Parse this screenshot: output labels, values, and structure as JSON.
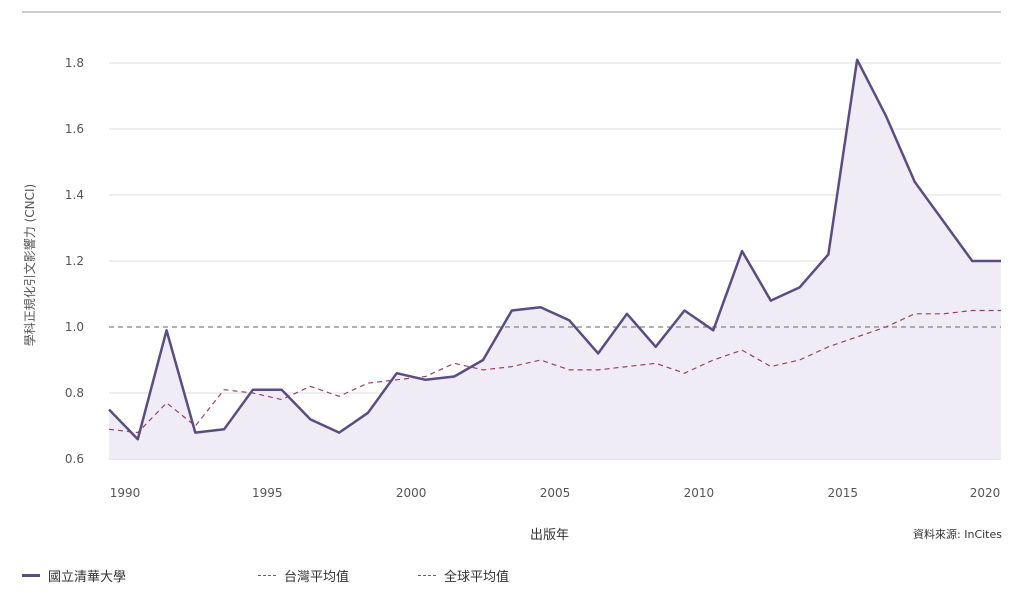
{
  "chart_data": {
    "type": "line",
    "xlabel": "出版年",
    "ylabel": "學科正規化引文影響力 (CNCI)",
    "xlim": [
      1989.5,
      2020.5
    ],
    "ylim": [
      0.6,
      1.8
    ],
    "xticks": [
      1990,
      1995,
      2000,
      2005,
      2010,
      2015,
      2020
    ],
    "yticks": [
      0.6,
      0.8,
      1.0,
      1.2,
      1.4,
      1.6,
      1.8
    ],
    "grid": true,
    "legend_position": "bottom",
    "series": [
      {
        "name": "國立清華大學",
        "style": "solid-filled",
        "color": "#5b4c84",
        "x": [
          1989.5,
          1990.5,
          1991.5,
          1992.5,
          1993.5,
          1994.5,
          1995.5,
          1996.5,
          1997.5,
          1998.5,
          1999.5,
          2000.5,
          2001.5,
          2002.5,
          2003.5,
          2004.5,
          2005.5,
          2006.5,
          2007.5,
          2008.5,
          2009.5,
          2010.5,
          2011.5,
          2012.5,
          2013.5,
          2014.5,
          2015.5,
          2016.5,
          2017.5,
          2018.5,
          2019.5,
          2020.5
        ],
        "values": [
          0.75,
          0.66,
          0.99,
          0.68,
          0.69,
          0.81,
          0.81,
          0.72,
          0.68,
          0.74,
          0.86,
          0.84,
          0.85,
          0.9,
          1.05,
          1.06,
          1.02,
          0.92,
          1.04,
          0.94,
          1.05,
          0.99,
          1.23,
          1.08,
          1.12,
          1.22,
          1.81,
          1.64,
          1.44,
          1.32,
          1.2,
          1.2
        ]
      },
      {
        "name": "台灣平均值",
        "style": "dashed",
        "color": "#9c3d73",
        "x": [
          1989.5,
          1990.5,
          1991.5,
          1992.5,
          1993.5,
          1994.5,
          1995.5,
          1996.5,
          1997.5,
          1998.5,
          1999.5,
          2000.5,
          2001.5,
          2002.5,
          2003.5,
          2004.5,
          2005.5,
          2006.5,
          2007.5,
          2008.5,
          2009.5,
          2010.5,
          2011.5,
          2012.5,
          2013.5,
          2014.5,
          2015.5,
          2016.5,
          2017.5,
          2018.5,
          2019.5,
          2020.5
        ],
        "values": [
          0.69,
          0.68,
          0.77,
          0.7,
          0.81,
          0.8,
          0.78,
          0.82,
          0.79,
          0.83,
          0.84,
          0.85,
          0.89,
          0.87,
          0.88,
          0.9,
          0.87,
          0.87,
          0.88,
          0.89,
          0.86,
          0.9,
          0.93,
          0.88,
          0.9,
          0.94,
          0.97,
          1.0,
          1.04,
          1.04,
          1.05,
          1.05
        ]
      },
      {
        "name": "全球平均值",
        "style": "dashed",
        "color": "#666666",
        "x": [
          1989.5,
          2020.5
        ],
        "values": [
          1.0,
          1.0
        ]
      }
    ]
  },
  "source_note": "資料來源: InCites"
}
